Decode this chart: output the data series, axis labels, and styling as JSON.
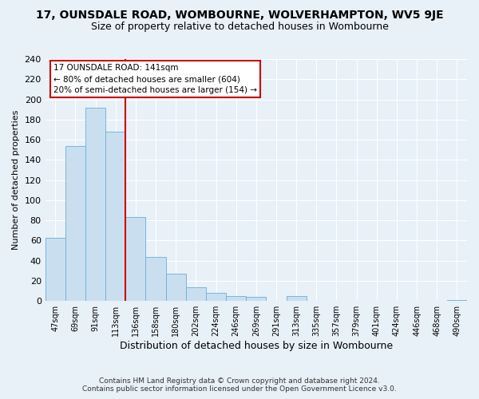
{
  "title_line1": "17, OUNSDALE ROAD, WOMBOURNE, WOLVERHAMPTON, WV5 9JE",
  "title_line2": "Size of property relative to detached houses in Wombourne",
  "xlabel": "Distribution of detached houses by size in Wombourne",
  "ylabel": "Number of detached properties",
  "footnote1": "Contains HM Land Registry data © Crown copyright and database right 2024.",
  "footnote2": "Contains public sector information licensed under the Open Government Licence v3.0.",
  "bin_labels": [
    "47sqm",
    "69sqm",
    "91sqm",
    "113sqm",
    "136sqm",
    "158sqm",
    "180sqm",
    "202sqm",
    "224sqm",
    "246sqm",
    "269sqm",
    "291sqm",
    "313sqm",
    "335sqm",
    "357sqm",
    "379sqm",
    "401sqm",
    "424sqm",
    "446sqm",
    "468sqm",
    "490sqm"
  ],
  "bar_heights": [
    63,
    154,
    192,
    168,
    83,
    44,
    27,
    14,
    8,
    5,
    4,
    0,
    5,
    0,
    0,
    0,
    0,
    0,
    0,
    0,
    1
  ],
  "bar_color": "#c9dff0",
  "bar_edge_color": "#6aaed6",
  "vline_x": 4.0,
  "vline_color": "#cc0000",
  "annotation_line1": "17 OUNSDALE ROAD: 141sqm",
  "annotation_line2": "← 80% of detached houses are smaller (604)",
  "annotation_line3": "20% of semi-detached houses are larger (154) →",
  "annotation_box_edge": "#cc0000",
  "ylim": [
    0,
    240
  ],
  "yticks": [
    0,
    20,
    40,
    60,
    80,
    100,
    120,
    140,
    160,
    180,
    200,
    220,
    240
  ],
  "background_color": "#e8f0f8",
  "plot_bg_color": "#e8f0f8",
  "grid_color": "#ffffff",
  "title1_fontsize": 10,
  "title2_fontsize": 9,
  "xlabel_fontsize": 9,
  "ylabel_fontsize": 8,
  "footnote_fontsize": 6.5
}
